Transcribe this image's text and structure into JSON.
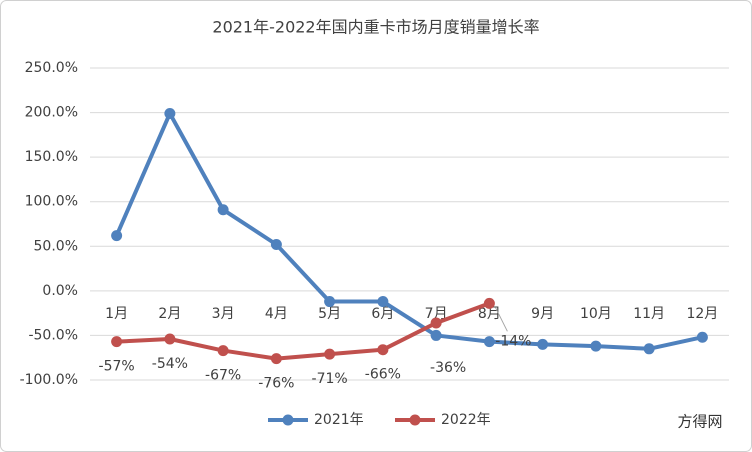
{
  "chart_data": {
    "type": "line",
    "title": "2021年-2022年国内重卡市场月度销量增长率",
    "categories": [
      "1月",
      "2月",
      "3月",
      "4月",
      "5月",
      "6月",
      "7月",
      "8月",
      "9月",
      "10月",
      "11月",
      "12月"
    ],
    "series": [
      {
        "name": "2021年",
        "color": "#4f81bd",
        "values": [
          62,
          199,
          91,
          52,
          -12,
          -12,
          -50,
          -57,
          -60,
          -62,
          -65,
          -52
        ]
      },
      {
        "name": "2022年",
        "color": "#c0504d",
        "values": [
          -57,
          -54,
          -67,
          -76,
          -71,
          -66,
          -36,
          -14,
          null,
          null,
          null,
          null
        ],
        "value_labels": [
          "-57%",
          "-54%",
          "-67%",
          "-76%",
          "-71%",
          "-66%",
          "-36%",
          "-14%",
          null,
          null,
          null,
          null
        ]
      }
    ],
    "ylim": [
      -100,
      250
    ],
    "yticks": [
      {
        "value": -100,
        "label": "-100.0%"
      },
      {
        "value": -50,
        "label": "-50.0%"
      },
      {
        "value": 0,
        "label": "0.0%"
      },
      {
        "value": 50,
        "label": "50.0%"
      },
      {
        "value": 100,
        "label": "100.0%"
      },
      {
        "value": 150,
        "label": "150.0%"
      },
      {
        "value": 200,
        "label": "200.0%"
      },
      {
        "value": 250,
        "label": "250.0%"
      }
    ],
    "grid": true,
    "legend": "bottom",
    "watermark": "方得网"
  }
}
